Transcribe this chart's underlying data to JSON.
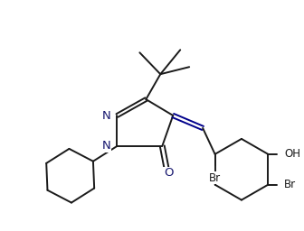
{
  "bg_color": "#ffffff",
  "line_color": "#1a1a1a",
  "line_color2": "#00008B",
  "label_color": "#000000",
  "figsize": [
    3.36,
    2.56
  ],
  "dpi": 100,
  "lw": 1.4,
  "N_label": "N",
  "O_label": "O",
  "Br_label": "Br",
  "OH_label": "OH",
  "font_size": 9.0
}
